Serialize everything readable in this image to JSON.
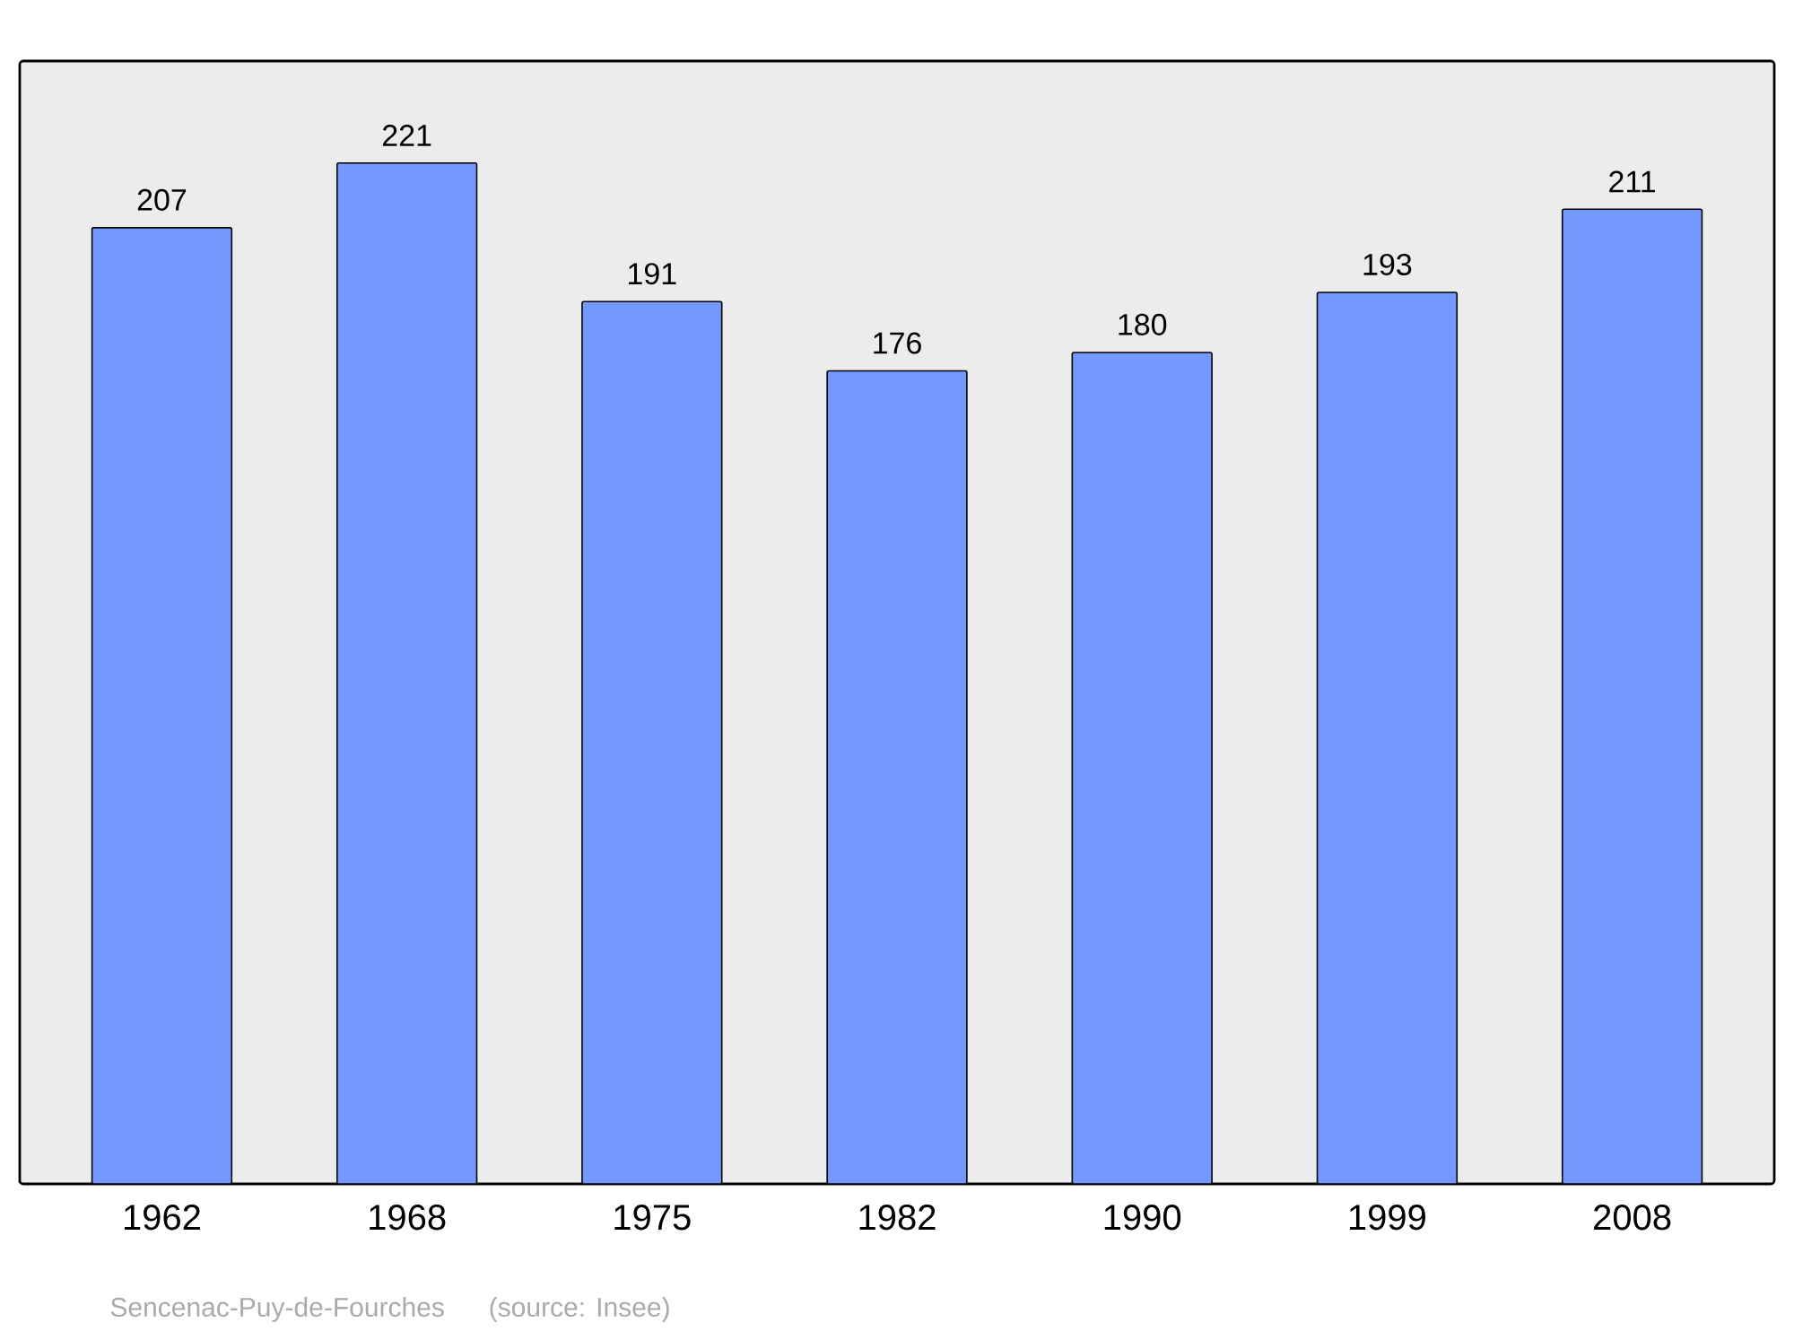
{
  "chart_data": {
    "type": "bar",
    "categories": [
      "1962",
      "1968",
      "1975",
      "1982",
      "1990",
      "1999",
      "2008"
    ],
    "values": [
      207,
      221,
      191,
      176,
      180,
      193,
      211
    ],
    "color": "#7399ff",
    "data_labels": true,
    "annotations": [
      "Sencenac-Puy-de-Fourches",
      "(source: Insee)"
    ]
  }
}
